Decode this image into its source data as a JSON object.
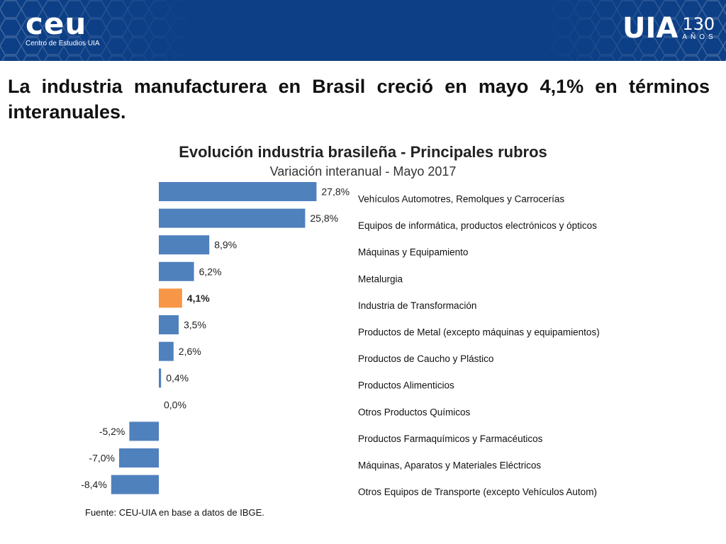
{
  "header": {
    "logo_left_main": "ceu",
    "logo_left_sub": "Centro de Estudios UIA",
    "logo_right_main": "UIA",
    "logo_right_number": "130",
    "logo_right_word": "AÑOS",
    "colors": {
      "bar": "#0d3f86"
    }
  },
  "headline": "La industria manufacturera en Brasil creció en mayo 4,1% en términos interanuales.",
  "chart_data": {
    "type": "bar",
    "orientation": "horizontal",
    "title": "Evolución industria brasileña - Principales rubros",
    "subtitle": "Variación interanual - Mayo 2017",
    "categories": [
      "Vehículos Automotres, Remolques y Carrocerías",
      "Equipos de informática, productos electrónicos y ópticos",
      "Máquinas y Equipamiento",
      "Metalurgia",
      "Industria de Transformación",
      "Productos de Metal (excepto máquinas y equipamientos)",
      "Productos de Caucho y Plástico",
      "Productos Alimenticios",
      "Otros Productos Químicos",
      "Productos Farmaquímicos y Farmacéuticos",
      "Máquinas, Aparatos y Materiales Eléctricos",
      "Otros Equipos de Transporte (excepto Vehículos Autom)"
    ],
    "values": [
      27.8,
      25.8,
      8.9,
      6.2,
      4.1,
      3.5,
      2.6,
      0.4,
      0.0,
      -5.2,
      -7.0,
      -8.4
    ],
    "data_labels": [
      "27,8%",
      "25,8%",
      "8,9%",
      "6,2%",
      "4,1%",
      "3,5%",
      "2,6%",
      "0,4%",
      "0,0%",
      "-5,2%",
      "-7,0%",
      "-8,4%"
    ],
    "highlight_index": 4,
    "colors": {
      "bar": "#4f81bd",
      "highlight": "#f79646"
    },
    "xlim": [
      -8.4,
      27.8
    ],
    "grid": false,
    "legend": "none"
  },
  "source": "Fuente: CEU-UIA en base a datos de IBGE."
}
